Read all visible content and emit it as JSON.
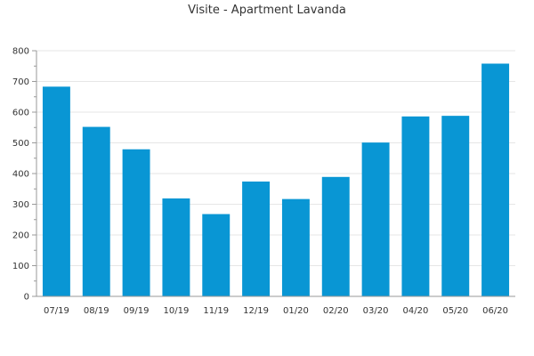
{
  "chart_data": {
    "type": "bar",
    "title": "Visite - Apartment Lavanda",
    "xlabel": "",
    "ylabel": "",
    "categories": [
      "07/19",
      "08/19",
      "09/19",
      "10/19",
      "11/19",
      "12/19",
      "01/20",
      "02/20",
      "03/20",
      "04/20",
      "05/20",
      "06/20"
    ],
    "values": [
      683,
      552,
      479,
      319,
      268,
      374,
      317,
      389,
      501,
      586,
      588,
      758
    ],
    "ylim": [
      0,
      800
    ],
    "yticks": [
      0,
      100,
      200,
      300,
      400,
      500,
      600,
      700,
      800
    ],
    "grid": true,
    "legend": "none",
    "colors": {
      "bar": "#0996d4",
      "grid": "#e6e6e6",
      "axis": "#999999"
    }
  }
}
